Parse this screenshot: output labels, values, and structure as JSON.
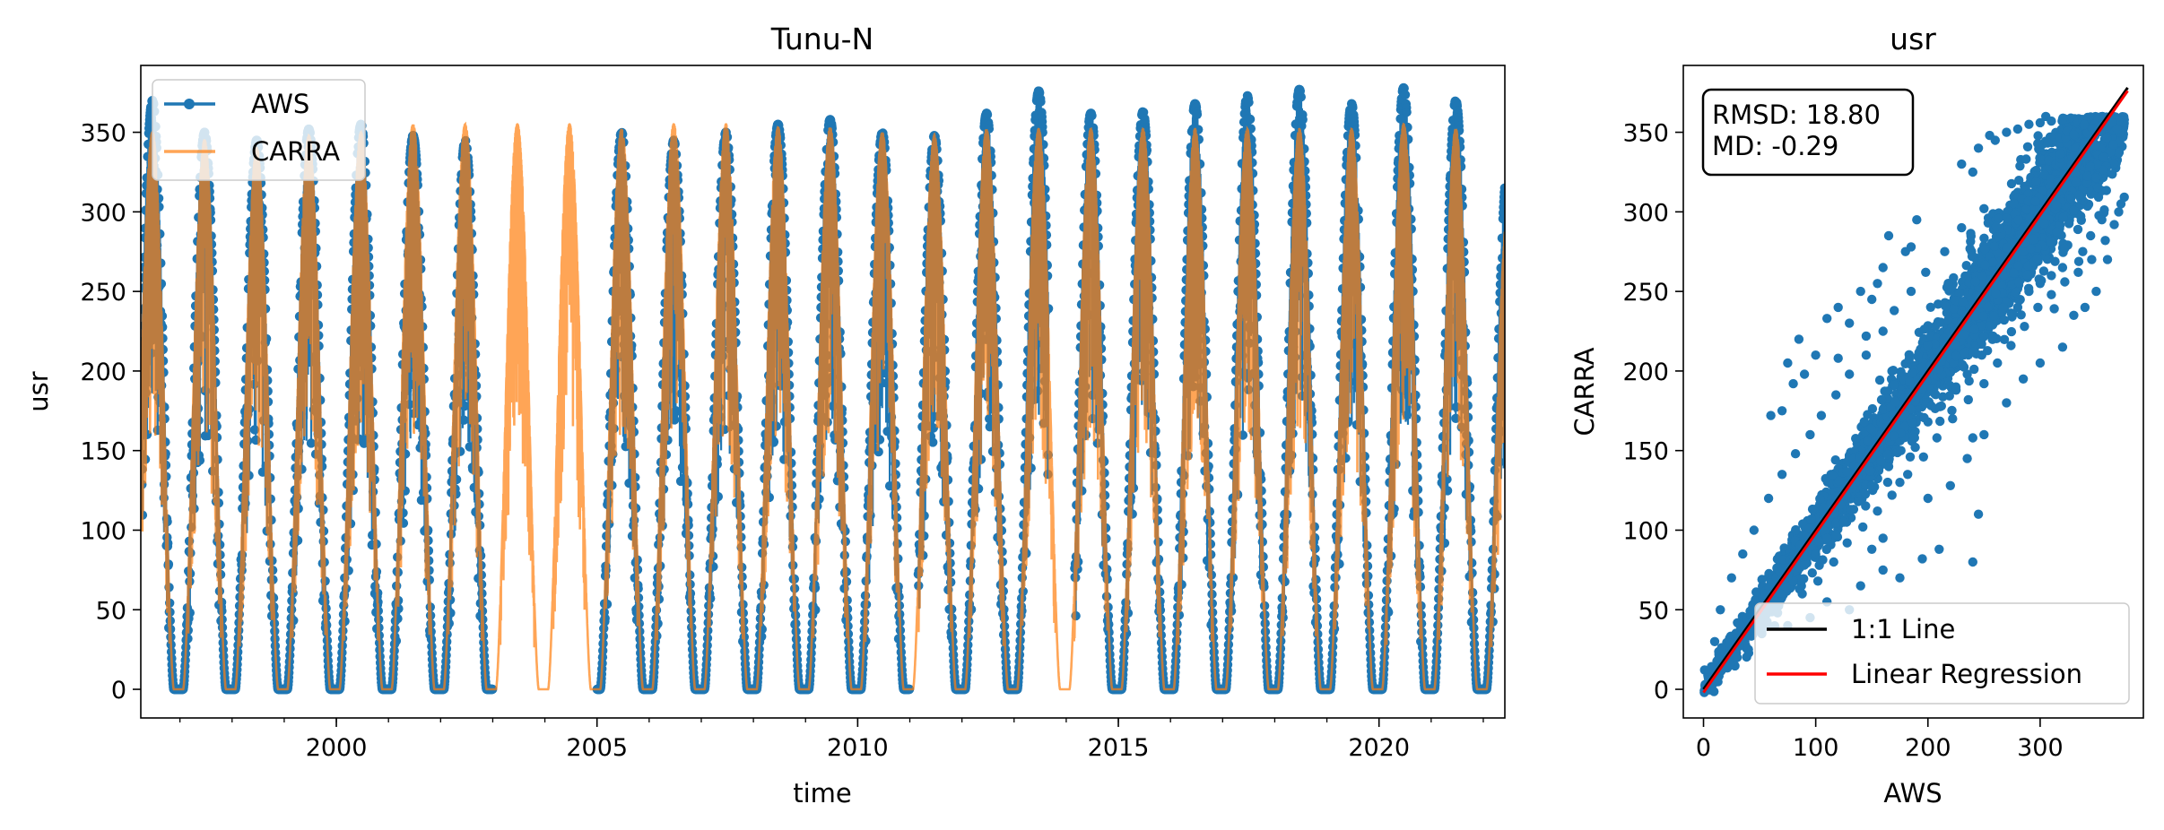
{
  "chart_data": [
    {
      "type": "line",
      "title": "Tunu-N",
      "xlabel": "time",
      "ylabel": "usr",
      "xlim": [
        "1996-04-01",
        "2022-06-01"
      ],
      "ylim": [
        -18,
        392
      ],
      "x_ticks": [
        "2000",
        "2005",
        "2010",
        "2015",
        "2020"
      ],
      "y_ticks": [
        0,
        50,
        100,
        150,
        200,
        250,
        300,
        350
      ],
      "legend_position": "upper-left",
      "series": [
        {
          "name": "AWS",
          "color": "#1f77b4",
          "marker": "circle",
          "description": "daily values, seasonal cycle with summer peaks near 340-375 and winter values near 0",
          "coverage": [
            [
              "1996-04-01",
              "2003-04-01"
            ],
            [
              "2004-11-01",
              "2010-12-31"
            ],
            [
              "2011-03-01",
              "2013-08-31"
            ],
            [
              "2014-03-01",
              "2022-06-01"
            ]
          ],
          "annual_peaks": [
            {
              "year": 1996,
              "peak": 370
            },
            {
              "year": 1997,
              "peak": 350
            },
            {
              "year": 1998,
              "peak": 345
            },
            {
              "year": 1999,
              "peak": 352
            },
            {
              "year": 2000,
              "peak": 355
            },
            {
              "year": 2001,
              "peak": 348
            },
            {
              "year": 2002,
              "peak": 345
            },
            {
              "year": 2005,
              "peak": 350
            },
            {
              "year": 2006,
              "peak": 345
            },
            {
              "year": 2007,
              "peak": 350
            },
            {
              "year": 2008,
              "peak": 355
            },
            {
              "year": 2009,
              "peak": 358
            },
            {
              "year": 2010,
              "peak": 350
            },
            {
              "year": 2011,
              "peak": 348
            },
            {
              "year": 2012,
              "peak": 362
            },
            {
              "year": 2013,
              "peak": 376
            },
            {
              "year": 2014,
              "peak": 362
            },
            {
              "year": 2015,
              "peak": 363
            },
            {
              "year": 2016,
              "peak": 368
            },
            {
              "year": 2017,
              "peak": 373
            },
            {
              "year": 2018,
              "peak": 377
            },
            {
              "year": 2019,
              "peak": 368
            },
            {
              "year": 2020,
              "peak": 378
            },
            {
              "year": 2021,
              "peak": 370
            },
            {
              "year": 2022,
              "peak": 330
            }
          ]
        },
        {
          "name": "CARRA",
          "color": "#ff7f0e",
          "description": "continuous daily values, same seasonal cycle, peaks near 345-358",
          "annual_peaks": [
            {
              "year": 1996,
              "peak": 350
            },
            {
              "year": 1997,
              "peak": 345
            },
            {
              "year": 1998,
              "peak": 340
            },
            {
              "year": 1999,
              "peak": 348
            },
            {
              "year": 2000,
              "peak": 350
            },
            {
              "year": 2001,
              "peak": 355
            },
            {
              "year": 2002,
              "peak": 355
            },
            {
              "year": 2003,
              "peak": 355
            },
            {
              "year": 2004,
              "peak": 355
            },
            {
              "year": 2005,
              "peak": 352
            },
            {
              "year": 2006,
              "peak": 355
            },
            {
              "year": 2007,
              "peak": 355
            },
            {
              "year": 2008,
              "peak": 353
            },
            {
              "year": 2009,
              "peak": 353
            },
            {
              "year": 2010,
              "peak": 350
            },
            {
              "year": 2011,
              "peak": 348
            },
            {
              "year": 2012,
              "peak": 352
            },
            {
              "year": 2013,
              "peak": 352
            },
            {
              "year": 2014,
              "peak": 352
            },
            {
              "year": 2015,
              "peak": 352
            },
            {
              "year": 2016,
              "peak": 352
            },
            {
              "year": 2017,
              "peak": 352
            },
            {
              "year": 2018,
              "peak": 352
            },
            {
              "year": 2019,
              "peak": 352
            },
            {
              "year": 2020,
              "peak": 355
            },
            {
              "year": 2021,
              "peak": 352
            },
            {
              "year": 2022,
              "peak": 300
            }
          ]
        }
      ]
    },
    {
      "type": "scatter",
      "title": "usr",
      "xlabel": "AWS",
      "ylabel": "CARRA",
      "xlim": [
        -18,
        392
      ],
      "ylim": [
        -18,
        392
      ],
      "x_ticks": [
        0,
        100,
        200,
        300
      ],
      "y_ticks": [
        0,
        50,
        100,
        150,
        200,
        250,
        300,
        350
      ],
      "annotation": {
        "rmsd": "RMSD: 18.80",
        "md": "MD: -0.29"
      },
      "legend_position": "lower-right",
      "scatter_color": "#1f77b4",
      "lines": [
        {
          "name": "1:1 Line",
          "color": "#000000",
          "x": [
            0,
            378
          ],
          "y": [
            0,
            378
          ]
        },
        {
          "name": "Linear Regression",
          "color": "#ff0000",
          "x": [
            0,
            378
          ],
          "y": [
            -2,
            376
          ]
        }
      ],
      "outliers": [
        [
          75,
          205
        ],
        [
          85,
          220
        ],
        [
          110,
          233
        ],
        [
          120,
          240
        ],
        [
          155,
          255
        ],
        [
          160,
          265
        ],
        [
          165,
          285
        ],
        [
          180,
          275
        ],
        [
          185,
          278
        ],
        [
          190,
          295
        ],
        [
          150,
          245
        ],
        [
          140,
          250
        ],
        [
          130,
          230
        ],
        [
          145,
          222
        ],
        [
          70,
          175
        ],
        [
          60,
          172
        ],
        [
          80,
          192
        ],
        [
          90,
          198
        ],
        [
          100,
          210
        ],
        [
          120,
          208
        ],
        [
          75,
          40
        ],
        [
          95,
          45
        ],
        [
          110,
          55
        ],
        [
          130,
          50
        ],
        [
          140,
          65
        ],
        [
          160,
          75
        ],
        [
          175,
          70
        ],
        [
          160,
          95
        ],
        [
          150,
          88
        ],
        [
          195,
          82
        ],
        [
          210,
          88
        ],
        [
          240,
          80
        ],
        [
          245,
          110
        ],
        [
          200,
          120
        ],
        [
          175,
          130
        ],
        [
          220,
          128
        ],
        [
          235,
          145
        ],
        [
          240,
          158
        ],
        [
          250,
          160
        ],
        [
          270,
          180
        ],
        [
          285,
          195
        ],
        [
          300,
          205
        ],
        [
          320,
          215
        ],
        [
          330,
          235
        ],
        [
          340,
          240
        ],
        [
          350,
          250
        ],
        [
          360,
          270
        ],
        [
          370,
          300
        ],
        [
          355,
          295
        ],
        [
          345,
          285
        ],
        [
          338,
          275
        ],
        [
          320,
          265
        ],
        [
          310,
          260
        ],
        [
          300,
          255
        ],
        [
          290,
          250
        ],
        [
          280,
          240
        ],
        [
          268,
          232
        ],
        [
          258,
          222
        ],
        [
          248,
          210
        ],
        [
          235,
          198
        ],
        [
          225,
          190
        ],
        [
          212,
          178
        ],
        [
          200,
          168
        ],
        [
          188,
          158
        ],
        [
          176,
          150
        ],
        [
          165,
          140
        ],
        [
          150,
          128
        ],
        [
          138,
          118
        ],
        [
          125,
          105
        ],
        [
          110,
          95
        ],
        [
          100,
          85
        ],
        [
          90,
          78
        ],
        [
          260,
          345
        ],
        [
          270,
          350
        ],
        [
          280,
          352
        ],
        [
          245,
          340
        ],
        [
          255,
          348
        ],
        [
          230,
          330
        ],
        [
          240,
          325
        ],
        [
          290,
          355
        ],
        [
          300,
          356
        ],
        [
          310,
          357
        ],
        [
          320,
          358
        ],
        [
          250,
          302
        ],
        [
          230,
          290
        ],
        [
          215,
          275
        ],
        [
          198,
          262
        ],
        [
          185,
          250
        ],
        [
          170,
          238
        ],
        [
          160,
          225
        ],
        [
          145,
          210
        ],
        [
          130,
          198
        ],
        [
          118,
          185
        ],
        [
          105,
          172
        ],
        [
          95,
          160
        ],
        [
          82,
          148
        ],
        [
          70,
          135
        ],
        [
          58,
          120
        ],
        [
          45,
          100
        ],
        [
          35,
          85
        ],
        [
          25,
          70
        ],
        [
          15,
          50
        ],
        [
          10,
          30
        ],
        [
          20,
          15
        ],
        [
          30,
          20
        ],
        [
          40,
          25
        ],
        [
          52,
          35
        ],
        [
          66,
          48
        ],
        [
          88,
          60
        ],
        [
          102,
          68
        ],
        [
          116,
          80
        ],
        [
          128,
          92
        ],
        [
          142,
          102
        ],
        [
          155,
          112
        ],
        [
          168,
          122
        ],
        [
          182,
          135
        ],
        [
          196,
          146
        ],
        [
          208,
          158
        ],
        [
          222,
          170
        ],
        [
          236,
          182
        ],
        [
          250,
          192
        ],
        [
          262,
          205
        ],
        [
          274,
          216
        ],
        [
          286,
          228
        ],
        [
          298,
          240
        ],
        [
          310,
          248
        ],
        [
          322,
          256
        ],
        [
          334,
          262
        ],
        [
          346,
          270
        ],
        [
          358,
          282
        ],
        [
          366,
          292
        ],
        [
          372,
          305
        ]
      ]
    }
  ]
}
